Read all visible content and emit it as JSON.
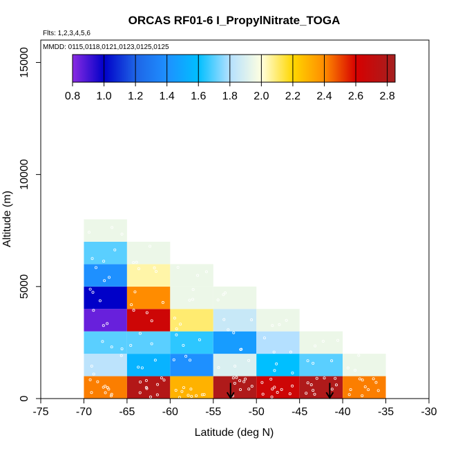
{
  "chart_data": {
    "type": "heatmap",
    "title": "ORCAS RF01-6 I_PropylNitrate_TOGA",
    "flights_note": "Flts: 1,2,3,4,5,6",
    "dates_note": "MMDD: 0115,0118,0121,0123,0125,0125",
    "xlabel": "Latitude (deg N)",
    "ylabel": "Altitude (m)",
    "xlim": [
      -75,
      -30
    ],
    "ylim": [
      0,
      16000
    ],
    "x_ticks": [
      -75,
      -70,
      -65,
      -60,
      -55,
      -50,
      -45,
      -40,
      -35,
      -30
    ],
    "x_tick_labels": [
      "-75",
      "-70",
      "-65",
      "-60",
      "-55",
      "-50",
      "-45",
      "-40",
      "-35",
      "-30"
    ],
    "y_ticks": [
      0,
      5000,
      10000,
      15000
    ],
    "y_tick_labels": [
      "0",
      "5000",
      "10000",
      "15000"
    ],
    "bin_width_deg": 5,
    "bin_height_m": 1000,
    "colorbar": {
      "min": 0.8,
      "max": 2.85,
      "ticks": [
        0.8,
        1.0,
        1.2,
        1.4,
        1.6,
        1.8,
        2.0,
        2.2,
        2.4,
        2.6,
        2.8
      ],
      "tick_labels": [
        "0.8",
        "1.0",
        "1.2",
        "1.4",
        "1.6",
        "1.8",
        "2.0",
        "2.2",
        "2.4",
        "2.6",
        "2.8"
      ],
      "stops": [
        {
          "v": 0.8,
          "color": "#8a2be2"
        },
        {
          "v": 1.0,
          "color": "#0000c8"
        },
        {
          "v": 1.2,
          "color": "#1e64e6"
        },
        {
          "v": 1.4,
          "color": "#1e90ff"
        },
        {
          "v": 1.6,
          "color": "#00bfff"
        },
        {
          "v": 1.8,
          "color": "#b4e0ff"
        },
        {
          "v": 2.0,
          "color": "#ffffe0"
        },
        {
          "v": 2.2,
          "color": "#ffd700"
        },
        {
          "v": 2.4,
          "color": "#ff8c00"
        },
        {
          "v": 2.6,
          "color": "#d70000"
        },
        {
          "v": 2.85,
          "color": "#a52020"
        }
      ]
    },
    "cells": [
      {
        "lat": -70,
        "alt": 0,
        "value": 2.42
      },
      {
        "lat": -70,
        "alt": 1000,
        "value": 1.82
      },
      {
        "lat": -70,
        "alt": 2000,
        "value": 1.7
      },
      {
        "lat": -70,
        "alt": 3000,
        "value": 0.85
      },
      {
        "lat": -70,
        "alt": 4000,
        "value": 1.0
      },
      {
        "lat": -70,
        "alt": 5000,
        "value": 1.4
      },
      {
        "lat": -70,
        "alt": 6000,
        "value": 1.7
      },
      {
        "lat": -70,
        "alt": 7000,
        "value": 1.95
      },
      {
        "lat": -65,
        "alt": 0,
        "value": 2.78
      },
      {
        "lat": -65,
        "alt": 1000,
        "value": 1.55
      },
      {
        "lat": -65,
        "alt": 2000,
        "value": 1.7
      },
      {
        "lat": -65,
        "alt": 3000,
        "value": 2.65
      },
      {
        "lat": -65,
        "alt": 4000,
        "value": 2.4
      },
      {
        "lat": -65,
        "alt": 5000,
        "value": 2.05
      },
      {
        "lat": -65,
        "alt": 6000,
        "value": 1.95
      },
      {
        "lat": -60,
        "alt": 0,
        "value": 2.3
      },
      {
        "lat": -60,
        "alt": 1000,
        "value": 1.4
      },
      {
        "lat": -60,
        "alt": 2000,
        "value": 1.65
      },
      {
        "lat": -60,
        "alt": 3000,
        "value": 2.1
      },
      {
        "lat": -60,
        "alt": 4000,
        "value": 1.95
      },
      {
        "lat": -60,
        "alt": 5000,
        "value": 1.95
      },
      {
        "lat": -55,
        "alt": 0,
        "value": 2.8
      },
      {
        "lat": -55,
        "alt": 1000,
        "value": 1.9
      },
      {
        "lat": -55,
        "alt": 2000,
        "value": 1.45
      },
      {
        "lat": -55,
        "alt": 3000,
        "value": 1.85
      },
      {
        "lat": -55,
        "alt": 4000,
        "value": 1.95
      },
      {
        "lat": -50,
        "alt": 0,
        "value": 2.65
      },
      {
        "lat": -50,
        "alt": 1000,
        "value": 1.6
      },
      {
        "lat": -50,
        "alt": 2000,
        "value": 1.8
      },
      {
        "lat": -50,
        "alt": 3000,
        "value": 1.95
      },
      {
        "lat": -45,
        "alt": 0,
        "value": 2.8
      },
      {
        "lat": -45,
        "alt": 1000,
        "value": 1.7
      },
      {
        "lat": -45,
        "alt": 2000,
        "value": 1.95
      },
      {
        "lat": -40,
        "alt": 0,
        "value": 2.42
      },
      {
        "lat": -40,
        "alt": 1000,
        "value": 1.95
      }
    ],
    "arrows_lat": [
      -53,
      -41.5
    ]
  }
}
